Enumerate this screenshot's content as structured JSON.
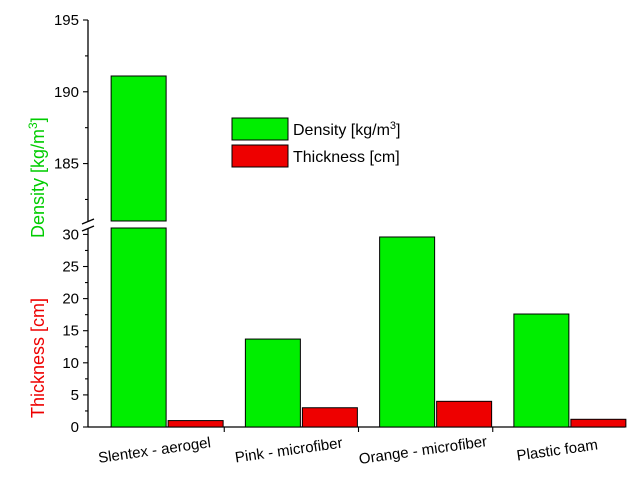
{
  "chart_data": {
    "type": "bar",
    "categories": [
      "Slentex - aerogel",
      "Pink - microfiber",
      "Orange - microfiber",
      "Plastic foam"
    ],
    "series": [
      {
        "name": "Density [kg/m³]",
        "axis": "left",
        "color": "#00ee00",
        "values": [
          191.1,
          13.7,
          29.6,
          17.6
        ]
      },
      {
        "name": "Thickness [cm]",
        "axis": "left",
        "color": "#ee0000",
        "values": [
          1.0,
          3.0,
          4.0,
          1.2
        ]
      }
    ],
    "ylabel_density": {
      "prefix": "Density [kg/m",
      "sup": "3",
      "suffix": "]",
      "color": "#00cc00"
    },
    "ylabel_thickness": {
      "text": "Thickness [cm]",
      "color": "#ee0000"
    },
    "y_axis": {
      "broken": true,
      "lower_range": [
        0,
        31
      ],
      "upper_range": [
        181,
        195
      ],
      "lower_ticks": [
        "0",
        "5",
        "10",
        "15",
        "20",
        "25",
        "30"
      ],
      "upper_ticks": [
        "185",
        "190",
        "195"
      ]
    },
    "legend": {
      "placement": "center",
      "entries": [
        {
          "prefix": "Density [kg/m",
          "sup": "3",
          "suffix": "]",
          "color": "#00ee00"
        },
        {
          "prefix": "Thickness [cm]",
          "sup": "",
          "suffix": "",
          "color": "#ee0000"
        }
      ]
    },
    "grid": false
  }
}
